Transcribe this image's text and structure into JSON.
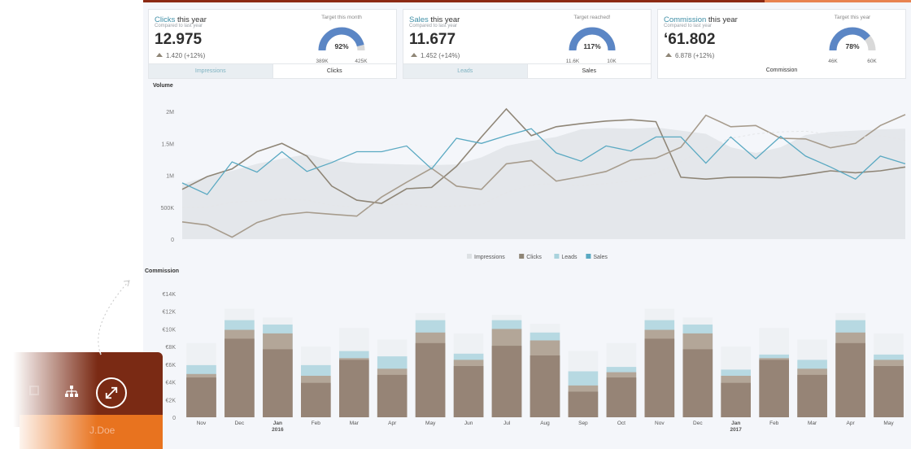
{
  "kpis": [
    {
      "title_highlight": "Clicks",
      "title_rest": " this year",
      "subtitle": "Compared to last year",
      "value": "12.975",
      "delta": "1.420 (+12%)",
      "gauge": {
        "title": "Target this month",
        "percent_label": "92%",
        "fraction": 0.92,
        "min_label": "389K",
        "max_label": "425K",
        "color": "#5b86c5"
      },
      "tabs": [
        "Impressions",
        "Clicks"
      ]
    },
    {
      "title_highlight": "Sales",
      "title_rest": " this year",
      "subtitle": "Compared to last year",
      "value": "11.677",
      "delta": "1.452 (+14%)",
      "gauge": {
        "title": "Target reached!",
        "percent_label": "117%",
        "fraction": 1.0,
        "min_label": "11.6K",
        "max_label": "10K",
        "color": "#5b86c5"
      },
      "tabs": [
        "Leads",
        "Sales"
      ]
    },
    {
      "title_highlight": "Commission",
      "title_rest": " this year",
      "subtitle": "Compared to last year",
      "value": "‘61.802",
      "delta": "6.878 (+12%)",
      "gauge": {
        "title": "Target this year",
        "percent_label": "78%",
        "fraction": 0.78,
        "min_label": "46K",
        "max_label": "60K",
        "color": "#5b86c5"
      },
      "tabs": [
        "Commission"
      ]
    }
  ],
  "colors": {
    "impressions": "#dde1e4",
    "clicks": "#8f8677",
    "leads": "#a9d3dd",
    "sales": "#5aa9c2",
    "bar_base": "#968476",
    "bar_mid": "#b3a698",
    "bar_leads": "#b7d9e2",
    "bar_top": "#eef1f4"
  },
  "chart_data": [
    {
      "type": "line",
      "title": "Volume",
      "yticks": [
        "2M",
        "1.5M",
        "1M",
        "500K",
        "0"
      ],
      "ylim": [
        0,
        2000000
      ],
      "legend": [
        "Impressions",
        "Clicks",
        "Leads",
        "Sales"
      ],
      "legend_position": "bottom-center",
      "x_count": 30,
      "series": [
        {
          "name": "Impressions",
          "style": "area",
          "values": [
            860000,
            980000,
            1070000,
            1180000,
            1260000,
            1330000,
            1230000,
            1190000,
            1180000,
            1170000,
            1160000,
            1170000,
            1280000,
            1460000,
            1540000,
            1600000,
            1720000,
            1740000,
            1730000,
            1750000,
            1700000,
            1650000,
            1440000,
            1350000,
            1440000,
            1630000,
            1680000,
            1700000,
            1720000,
            1730000
          ]
        },
        {
          "name": "Clicks",
          "style": "line",
          "values": [
            780000,
            980000,
            1100000,
            1370000,
            1500000,
            1300000,
            830000,
            610000,
            560000,
            790000,
            810000,
            1140000,
            1600000,
            2040000,
            1620000,
            1760000,
            1810000,
            1850000,
            1870000,
            1840000,
            970000,
            940000,
            970000,
            970000,
            960000,
            1010000,
            1070000,
            1040000,
            1070000,
            1130000
          ]
        },
        {
          "name": "Leads",
          "style": "line",
          "values": [
            270000,
            220000,
            30000,
            260000,
            380000,
            420000,
            390000,
            360000,
            660000,
            890000,
            1110000,
            830000,
            780000,
            1180000,
            1230000,
            910000,
            980000,
            1060000,
            1240000,
            1270000,
            1440000,
            1940000,
            1760000,
            1780000,
            1580000,
            1570000,
            1430000,
            1500000,
            1780000,
            1950000
          ]
        },
        {
          "name": "Sales",
          "style": "line",
          "values": [
            880000,
            700000,
            1210000,
            1050000,
            1370000,
            1060000,
            1200000,
            1370000,
            1370000,
            1460000,
            1100000,
            1580000,
            1500000,
            1620000,
            1730000,
            1350000,
            1220000,
            1460000,
            1380000,
            1600000,
            1600000,
            1190000,
            1600000,
            1260000,
            1610000,
            1300000,
            1130000,
            940000,
            1300000,
            1180000
          ]
        },
        {
          "name": "Impressions (dashed)",
          "style": "dashed",
          "values": [
            500000,
            500000,
            580000,
            600000,
            630000,
            610000,
            530000,
            500000,
            530000,
            550000,
            500000,
            520000,
            540000,
            730000,
            850000,
            870000,
            840000,
            870000,
            910000,
            1030000,
            1210000,
            1430000,
            1580000,
            1650000,
            1680000,
            1690000,
            1640000,
            1590000,
            1620000,
            1550000
          ]
        }
      ]
    },
    {
      "type": "bar",
      "title": "Commission",
      "yticks": [
        "€14K",
        "€12K",
        "€10K",
        "€8K",
        "€6K",
        "€4K",
        "€2K",
        "0"
      ],
      "ylim": [
        0,
        14000
      ],
      "categories": [
        "Nov",
        "Dec",
        "Jan",
        "Feb",
        "Mar",
        "Apr",
        "May",
        "Jun",
        "Jul",
        "Aug",
        "Sep",
        "Oct",
        "Nov",
        "Dec",
        "Jan",
        "Feb",
        "Mar",
        "Apr",
        "May"
      ],
      "year_labels": [
        "",
        "",
        "2016",
        "",
        "",
        "",
        "",
        "",
        "",
        "",
        "",
        "",
        "",
        "",
        "2017",
        "",
        "",
        "",
        ""
      ],
      "stack_totals": {
        "base": [
          4500,
          8900,
          7700,
          3900,
          6500,
          4800,
          8400,
          5800,
          8100,
          7000,
          2900,
          4500,
          8900,
          7700,
          3900,
          6500,
          4800,
          8400,
          5800
        ],
        "mid": [
          4900,
          9900,
          9500,
          4700,
          6700,
          5500,
          9600,
          6500,
          10000,
          8700,
          3600,
          5100,
          9900,
          9500,
          4700,
          6700,
          5500,
          9600,
          6500
        ],
        "leads": [
          5900,
          11000,
          10500,
          5900,
          7500,
          6900,
          11000,
          7200,
          11000,
          9600,
          5200,
          5700,
          11000,
          10500,
          5400,
          7100,
          6500,
          11000,
          7100
        ],
        "top": [
          8400,
          12300,
          11300,
          8000,
          10100,
          8800,
          11800,
          9500,
          11600,
          10600,
          7500,
          8400,
          12300,
          11300,
          8000,
          10100,
          8800,
          11800,
          9500
        ]
      }
    }
  ],
  "sidebar": {
    "user": "J.Doe"
  }
}
